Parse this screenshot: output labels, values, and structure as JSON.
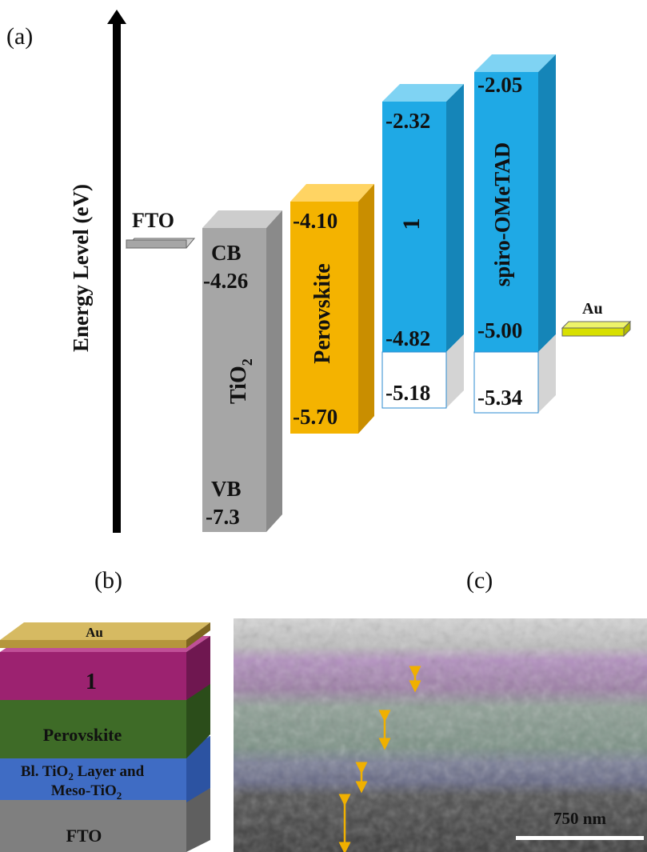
{
  "panel_a": {
    "label": "(a)",
    "axis_label": "Energy Level (eV)",
    "fto": {
      "label": "FTO"
    },
    "tio2": {
      "name": "TiO",
      "name_sub": "2",
      "cb_label": "CB",
      "cb_value": "-4.26",
      "vb_label": "VB",
      "vb_value": "-7.3"
    },
    "perovskite": {
      "name": "Perovskite",
      "lumo": "-4.10",
      "homo": "-5.70"
    },
    "compound1": {
      "name": "1",
      "lumo": "-2.32",
      "homo": "-4.82",
      "lower": "-5.18"
    },
    "spiro": {
      "name": "spiro-OMeTAD",
      "lumo": "-2.05",
      "homo": "-5.00",
      "lower": "-5.34"
    },
    "au": {
      "label": "Au"
    },
    "colors": {
      "tio2": "#a6a6a6",
      "perovskite": "#f4b300",
      "blue": "#1fa9e5",
      "fto": "#a6a6a6",
      "au": "#d8e000"
    }
  },
  "panel_b": {
    "label": "(b)",
    "layers": {
      "au": "Au",
      "compound1": "1",
      "perovskite": "Perovskite",
      "tio2_line1": "Bl. TiO",
      "tio2_line1_sub": "2",
      "tio2_line1_rest": " Layer  and",
      "tio2_line2": "Meso-TiO",
      "tio2_line2_sub": "2",
      "fto": "FTO"
    },
    "colors": {
      "au": "#b5963c",
      "compound1": "#9c2270",
      "perovskite": "#3e6b27",
      "tio2": "#3f6cc4",
      "fto": "#7f7f7f"
    }
  },
  "panel_c": {
    "label": "(c)",
    "scale_bar": "750 nm",
    "arrow_color": "#f0b000"
  }
}
